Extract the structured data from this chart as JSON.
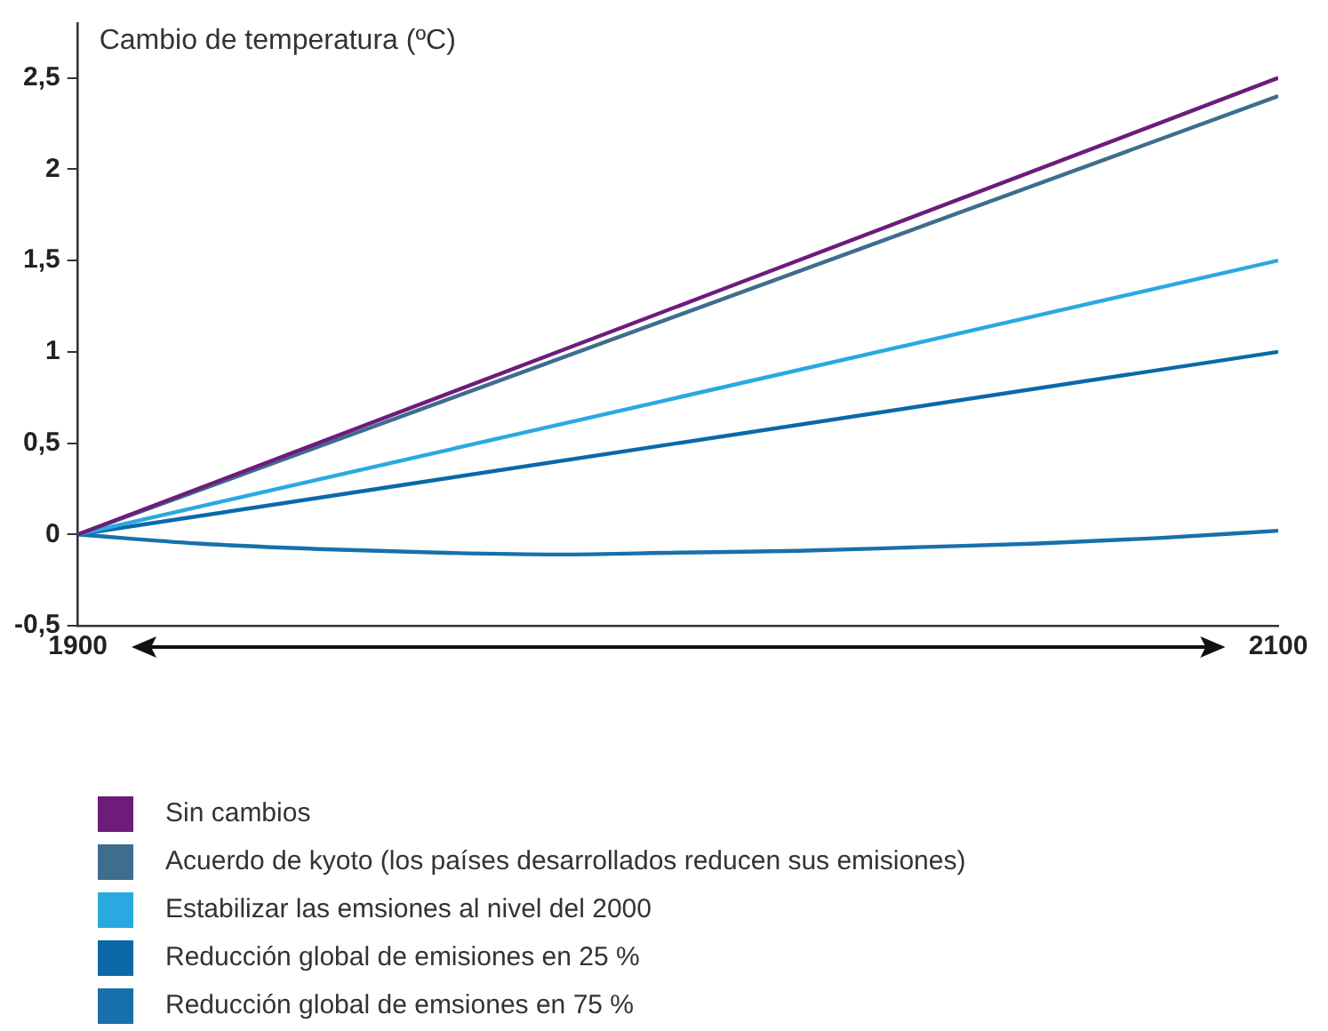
{
  "chart_data": {
    "type": "line",
    "ylabel": "Cambio de temperatura (ºC)",
    "x": [
      1900,
      2100
    ],
    "series": [
      {
        "name": "Sin cambios",
        "color": "#6e1b7c",
        "values": [
          0,
          2.5
        ]
      },
      {
        "name": "Acuerdo de kyoto (los países desarrollados reducen sus emisiones)",
        "color": "#3e6d8e",
        "values": [
          0,
          2.4
        ]
      },
      {
        "name": "Estabilizar las emsiones al nivel del 2000",
        "color": "#2aa9e0",
        "values": [
          0,
          1.5
        ]
      },
      {
        "name": "Reducción global de emisiones en 25 %",
        "color": "#0b69a8",
        "values": [
          0,
          1
        ]
      },
      {
        "name": "Reducción global de emsiones en 75 %",
        "color": "#1870ab",
        "x": [
          1900,
          1920,
          1940,
          1960,
          1980,
          2000,
          2020,
          2040,
          2060,
          2080,
          2100
        ],
        "values": [
          0,
          -0.05,
          -0.08,
          -0.1,
          -0.11,
          -0.1,
          -0.09,
          -0.07,
          -0.05,
          -0.02,
          0.02
        ]
      }
    ],
    "xlim": [
      1900,
      2100
    ],
    "xticks": [
      1900,
      2100
    ],
    "ylim": [
      -0.5,
      2.8
    ],
    "yticks": [
      {
        "value": -0.5,
        "label": "-0,5"
      },
      {
        "value": 0,
        "label": "0"
      },
      {
        "value": 0.5,
        "label": "0,5"
      },
      {
        "value": 1,
        "label": "1"
      },
      {
        "value": 1.5,
        "label": "1,5"
      },
      {
        "value": 2,
        "label": "2"
      },
      {
        "value": 2.5,
        "label": "2,5"
      }
    ],
    "grid": false,
    "legend": "bottom",
    "marker": "none",
    "line_style": "solid"
  }
}
